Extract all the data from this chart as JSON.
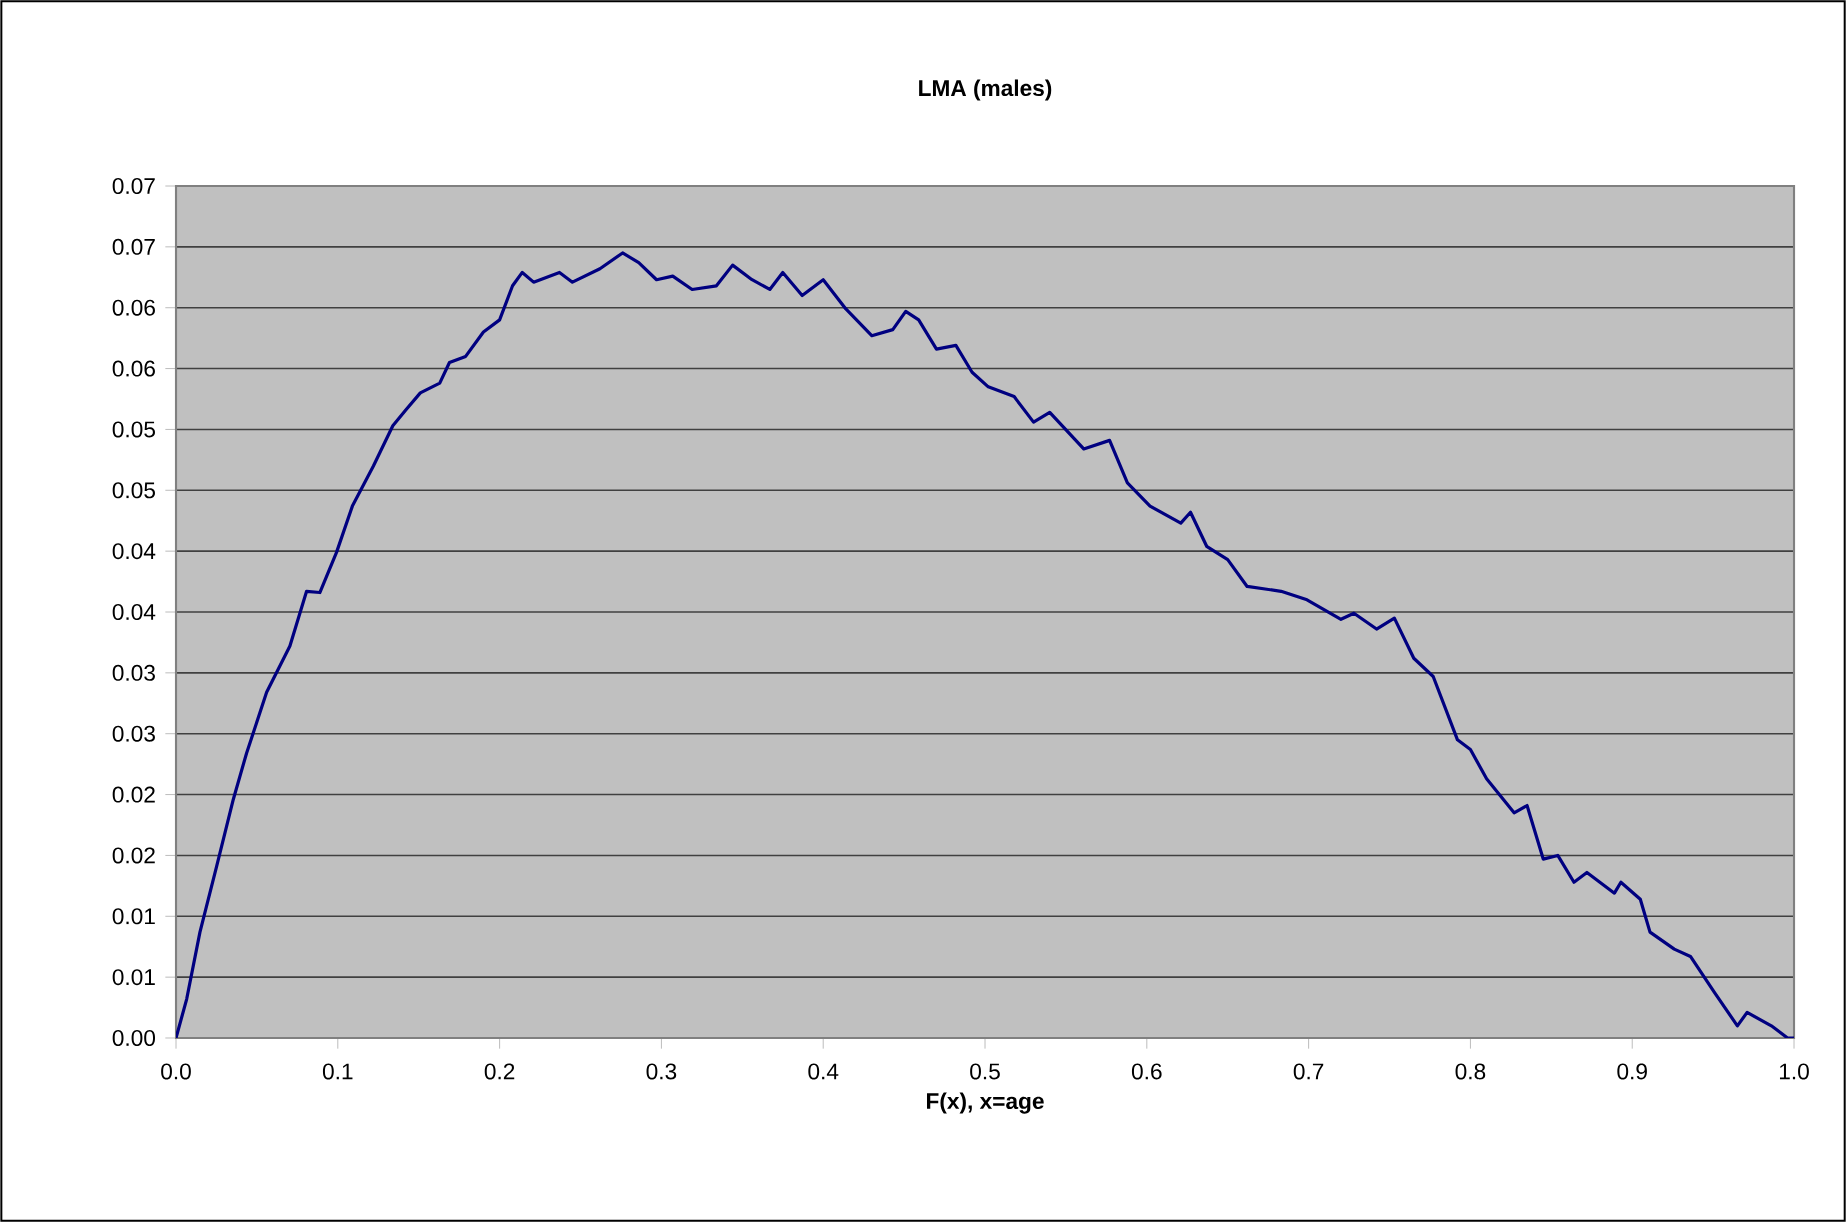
{
  "chart_data": {
    "type": "line",
    "title": "LMA (males)",
    "xlabel": "F(x), x=age",
    "x": [
      0,
      0.0066,
      0.0148,
      0.0251,
      0.0354,
      0.0436,
      0.056,
      0.0704,
      0.0807,
      0.0889,
      0.0992,
      0.109,
      0.122,
      0.134,
      0.142,
      0.151,
      0.163,
      0.169,
      0.179,
      0.19,
      0.2,
      0.208,
      0.214,
      0.221,
      0.237,
      0.245,
      0.262,
      0.276,
      0.286,
      0.297,
      0.307,
      0.319,
      0.334,
      0.344,
      0.356,
      0.367,
      0.375,
      0.387,
      0.4,
      0.414,
      0.43,
      0.443,
      0.451,
      0.459,
      0.47,
      0.482,
      0.492,
      0.502,
      0.518,
      0.53,
      0.54,
      0.561,
      0.577,
      0.588,
      0.602,
      0.621,
      0.627,
      0.637,
      0.65,
      0.662,
      0.683,
      0.699,
      0.72,
      0.728,
      0.742,
      0.753,
      0.765,
      0.777,
      0.792,
      0.8,
      0.81,
      0.827,
      0.835,
      0.845,
      0.854,
      0.864,
      0.872,
      0.889,
      0.893,
      0.905,
      0.911,
      0.926,
      0.936,
      0.951,
      0.965,
      0.971,
      0.986,
      0.996,
      1.0
    ],
    "series": [
      {
        "color": "#000080",
        "values": [
          0,
          0.0032,
          0.0087,
          0.0141,
          0.0196,
          0.0234,
          0.0284,
          0.0322,
          0.0367,
          0.0366,
          0.0399,
          0.0437,
          0.047,
          0.0503,
          0.0516,
          0.053,
          0.0538,
          0.0555,
          0.056,
          0.058,
          0.059,
          0.0618,
          0.0629,
          0.0621,
          0.0629,
          0.0621,
          0.0632,
          0.0645,
          0.0637,
          0.0623,
          0.0626,
          0.0615,
          0.0618,
          0.0635,
          0.0623,
          0.0615,
          0.0629,
          0.061,
          0.0623,
          0.0599,
          0.0577,
          0.0582,
          0.0597,
          0.059,
          0.0566,
          0.0569,
          0.0547,
          0.0535,
          0.0527,
          0.0506,
          0.0514,
          0.0484,
          0.0491,
          0.0456,
          0.0437,
          0.0423,
          0.0432,
          0.0404,
          0.0393,
          0.0371,
          0.0367,
          0.036,
          0.0344,
          0.0349,
          0.0336,
          0.0345,
          0.0312,
          0.0297,
          0.0245,
          0.0237,
          0.0213,
          0.0185,
          0.0191,
          0.0147,
          0.015,
          0.0128,
          0.0136,
          0.0119,
          0.0128,
          0.0114,
          0.0087,
          0.0073,
          0.0067,
          0.0037,
          0.001,
          0.0021,
          0.001,
          0,
          0
        ]
      }
    ],
    "xlim": [
      0,
      1
    ],
    "ylim": [
      0,
      0.07
    ],
    "xticks": [
      {
        "value": 0,
        "label": "0.0"
      },
      {
        "value": 0.1,
        "label": "0.1"
      },
      {
        "value": 0.2,
        "label": "0.2"
      },
      {
        "value": 0.3,
        "label": "0.3"
      },
      {
        "value": 0.4,
        "label": "0.4"
      },
      {
        "value": 0.5,
        "label": "0.5"
      },
      {
        "value": 0.6,
        "label": "0.6"
      },
      {
        "value": 0.7,
        "label": "0.7"
      },
      {
        "value": 0.8,
        "label": "0.8"
      },
      {
        "value": 0.9,
        "label": "0.9"
      },
      {
        "value": 1,
        "label": "1.0"
      }
    ],
    "yticks": [
      {
        "value": 0,
        "label": "0.00"
      },
      {
        "value": 0.005,
        "label": "0.01"
      },
      {
        "value": 0.01,
        "label": "0.01"
      },
      {
        "value": 0.015,
        "label": "0.02"
      },
      {
        "value": 0.02,
        "label": "0.02"
      },
      {
        "value": 0.025,
        "label": "0.03"
      },
      {
        "value": 0.03,
        "label": "0.03"
      },
      {
        "value": 0.035,
        "label": "0.04"
      },
      {
        "value": 0.04,
        "label": "0.04"
      },
      {
        "value": 0.045,
        "label": "0.05"
      },
      {
        "value": 0.05,
        "label": "0.05"
      },
      {
        "value": 0.055,
        "label": "0.06"
      },
      {
        "value": 0.06,
        "label": "0.06"
      },
      {
        "value": 0.065,
        "label": "0.07"
      },
      {
        "value": 0.07,
        "label": "0.07"
      }
    ],
    "grid": "y"
  }
}
